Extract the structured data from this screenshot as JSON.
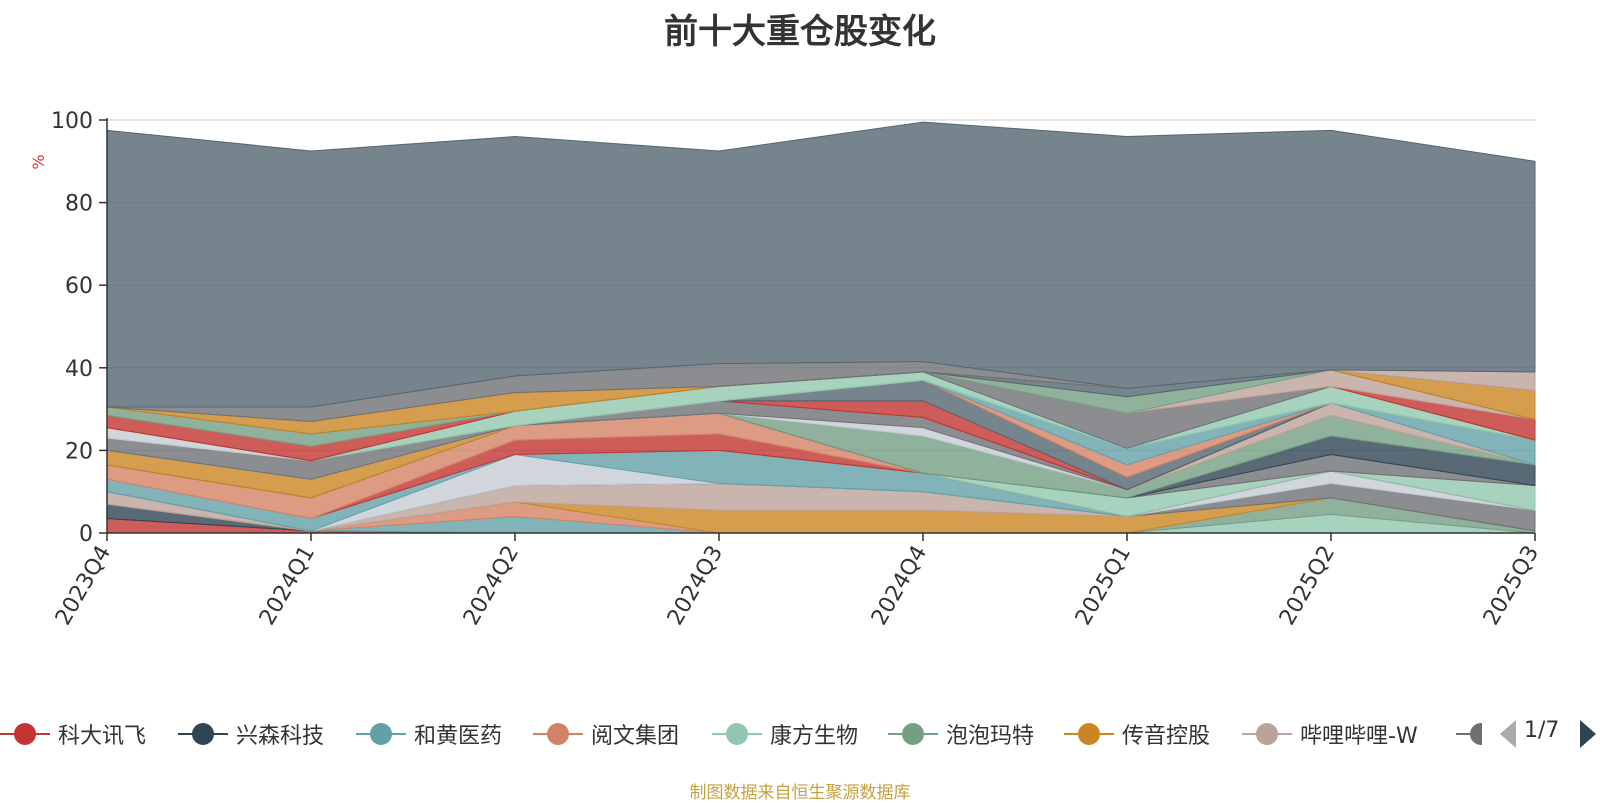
{
  "chart_data": {
    "type": "area",
    "stacked": true,
    "title": "前十大重仓股变化",
    "ylabel": "%",
    "ylim": [
      0,
      100
    ],
    "yticks": [
      "0",
      "20",
      "40",
      "60",
      "80",
      "100"
    ],
    "categories": [
      "2023Q4",
      "2024Q1",
      "2024Q2",
      "2024Q3",
      "2024Q4",
      "2025Q1",
      "2025Q2",
      "2025Q3"
    ],
    "grid": true,
    "legend_position": "bottom",
    "series": [
      {
        "name": "科大讯飞",
        "color": "#c23531",
        "values": [
          3.5,
          0.5,
          0,
          0,
          0,
          0,
          0,
          0
        ]
      },
      {
        "name": "兴森科技",
        "color": "#2f4554",
        "values": [
          3.5,
          0,
          0,
          0,
          0,
          0,
          0,
          0
        ]
      },
      {
        "name": "和黄医药",
        "color": "#61a0a8",
        "values": [
          0,
          0,
          4,
          0,
          0,
          0,
          0,
          0
        ]
      },
      {
        "name": "阅文集团",
        "color": "#d48265",
        "values": [
          0,
          0,
          3.5,
          0,
          0,
          0,
          0,
          0
        ]
      },
      {
        "name": "康方生物",
        "color": "#91c7ae",
        "values": [
          0,
          0,
          0,
          0,
          0,
          0,
          4.5,
          0
        ]
      },
      {
        "name": "泡泡玛特",
        "color": "#749f83",
        "values": [
          0,
          0,
          0,
          0,
          0,
          0,
          4,
          0.5
        ]
      },
      {
        "name": "传音控股",
        "color": "#ca8622",
        "values": [
          0,
          0,
          0,
          5.5,
          5.5,
          4,
          0,
          0
        ]
      },
      {
        "name": "哔哩哔哩-W",
        "color": "#bda29a",
        "values": [
          3,
          0,
          4,
          6.5,
          4.5,
          0,
          0,
          0
        ]
      },
      {
        "name": "",
        "color": "#6e7074",
        "values": [
          0,
          0,
          0,
          0,
          0,
          0,
          3.5,
          5
        ]
      },
      {
        "name": "",
        "color": "#546570",
        "values": [
          0,
          0,
          0,
          0,
          0,
          0,
          0,
          0
        ]
      },
      {
        "name": "",
        "color": "#c4ccd3",
        "values": [
          0,
          0,
          7.5,
          0,
          0,
          0,
          3,
          0
        ]
      },
      {
        "name": "",
        "color": "#61a0a8",
        "values": [
          3,
          3,
          0,
          8,
          4.5,
          0,
          0,
          0
        ]
      },
      {
        "name": "",
        "color": "#c23531",
        "values": [
          0,
          0,
          3.5,
          4,
          0,
          0,
          0,
          0
        ]
      },
      {
        "name": "",
        "color": "#91c7ae",
        "values": [
          0,
          0,
          0,
          0,
          0,
          4.5,
          0,
          6
        ]
      },
      {
        "name": "",
        "color": "#d48265",
        "values": [
          3.5,
          5,
          3.5,
          5,
          0,
          0,
          0,
          0
        ]
      },
      {
        "name": "",
        "color": "#6e7074",
        "values": [
          0,
          0,
          0,
          0,
          0,
          0,
          4,
          0
        ]
      },
      {
        "name": "",
        "color": "#2f4554",
        "values": [
          0,
          0,
          0,
          0,
          0,
          0,
          4.5,
          5
        ]
      },
      {
        "name": "",
        "color": "#749f83",
        "values": [
          0,
          0,
          0,
          0,
          9,
          2,
          5,
          0
        ]
      },
      {
        "name": "",
        "color": "#ca8622",
        "values": [
          3.5,
          4.5,
          0,
          0,
          0,
          0,
          0,
          0
        ]
      },
      {
        "name": "",
        "color": "#bda29a",
        "values": [
          0,
          0,
          0,
          0,
          0,
          0,
          3,
          0
        ]
      },
      {
        "name": "",
        "color": "#61a0a8",
        "values": [
          0,
          0,
          0,
          0,
          0,
          0,
          0,
          6
        ]
      },
      {
        "name": "",
        "color": "#c4ccd3",
        "values": [
          0,
          0,
          0,
          0,
          2,
          0,
          0,
          0
        ]
      },
      {
        "name": "",
        "color": "#6e7074",
        "values": [
          3,
          4.5,
          0,
          3,
          2.5,
          0,
          0,
          0
        ]
      },
      {
        "name": "",
        "color": "#c23531",
        "values": [
          0,
          0,
          0,
          0,
          4,
          0,
          0,
          0
        ]
      },
      {
        "name": "",
        "color": "#546570",
        "values": [
          0,
          0,
          0,
          0,
          5,
          3,
          0,
          0
        ]
      },
      {
        "name": "",
        "color": "#d48265",
        "values": [
          0,
          0,
          0,
          0,
          0,
          3,
          0,
          0
        ]
      },
      {
        "name": "",
        "color": "#61a0a8",
        "values": [
          0,
          0,
          0,
          0,
          0,
          4,
          0,
          0
        ]
      },
      {
        "name": "",
        "color": "#c4ccd3",
        "values": [
          2.5,
          0,
          0,
          0,
          0,
          0,
          0,
          0
        ]
      },
      {
        "name": "",
        "color": "#91c7ae",
        "values": [
          0,
          0,
          3.5,
          3.5,
          2,
          0,
          4,
          0
        ]
      },
      {
        "name": "",
        "color": "#6e7074",
        "values": [
          0,
          0,
          0,
          0,
          0,
          8.5,
          0,
          0
        ]
      },
      {
        "name": "",
        "color": "#c23531",
        "values": [
          3,
          3.5,
          0,
          0,
          0,
          0,
          0,
          5
        ]
      },
      {
        "name": "",
        "color": "#bda29a",
        "values": [
          0,
          0,
          0,
          0,
          0,
          0,
          4,
          0
        ]
      },
      {
        "name": "",
        "color": "#749f83",
        "values": [
          2,
          3,
          0,
          0,
          0,
          4,
          0,
          0
        ]
      },
      {
        "name": "",
        "color": "#546570",
        "values": [
          0,
          0,
          0,
          0,
          0,
          2,
          0,
          0
        ]
      },
      {
        "name": "",
        "color": "#ca8622",
        "values": [
          0,
          3,
          4.5,
          0,
          0,
          0,
          0,
          7
        ]
      },
      {
        "name": "",
        "color": "#6e7074",
        "values": [
          0,
          3.5,
          4,
          5.5,
          2.5,
          0,
          0,
          0
        ]
      },
      {
        "name": "",
        "color": "#bda29a",
        "values": [
          0,
          0,
          0,
          0,
          0,
          0,
          0,
          4.5
        ]
      },
      {
        "name": "",
        "color": "#546570",
        "values": [
          67,
          62,
          58,
          51.5,
          58,
          61,
          58,
          51
        ]
      }
    ]
  },
  "legend": {
    "page_text": "1/7"
  },
  "source_note": "制图数据来自恒生聚源数据库"
}
